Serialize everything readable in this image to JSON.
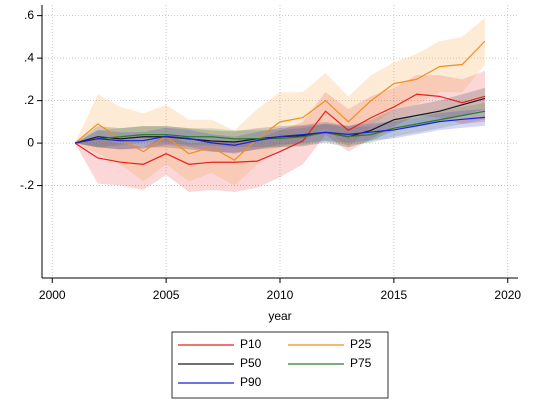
{
  "chart_data": {
    "type": "line",
    "x_label": "year",
    "x": [
      2001,
      2002,
      2003,
      2004,
      2005,
      2006,
      2007,
      2008,
      2009,
      2010,
      2011,
      2012,
      2013,
      2014,
      2015,
      2016,
      2017,
      2018,
      2019
    ],
    "xlim": [
      1999.55,
      2020.45
    ],
    "xticks": [
      2000,
      2005,
      2010,
      2015,
      2020
    ],
    "ylim": [
      -0.635,
      0.65
    ],
    "yticks": [
      {
        "value": 0.6,
        "label": ".6"
      },
      {
        "value": 0.4,
        "label": ".4"
      },
      {
        "value": 0.2,
        "label": ".2"
      },
      0,
      {
        "value": -0.2,
        "label": "-.2"
      }
    ],
    "grid": true,
    "legend": "bottom",
    "series": [
      {
        "name": "P10",
        "color": "#e8211f",
        "values": [
          0,
          -0.07,
          -0.09,
          -0.1,
          -0.05,
          -0.1,
          -0.09,
          -0.09,
          -0.085,
          -0.04,
          0.01,
          0.15,
          0.06,
          0.12,
          0.17,
          0.23,
          0.22,
          0.19,
          0.22
        ],
        "upper": [
          0,
          0.02,
          0.0,
          -0.02,
          0.04,
          0.0,
          0.005,
          0.01,
          0.02,
          0.06,
          0.1,
          0.24,
          0.16,
          0.22,
          0.26,
          0.32,
          0.32,
          0.3,
          0.34
        ],
        "lower": [
          0,
          -0.19,
          -0.2,
          -0.22,
          -0.15,
          -0.23,
          -0.22,
          -0.23,
          -0.21,
          -0.16,
          -0.1,
          0.04,
          -0.04,
          0.02,
          0.08,
          0.13,
          0.12,
          0.09,
          0.1
        ]
      },
      {
        "name": "P25",
        "color": "#f28e1c",
        "values": [
          0,
          0.09,
          0.02,
          -0.04,
          0.03,
          -0.05,
          -0.02,
          -0.08,
          0.02,
          0.1,
          0.12,
          0.2,
          0.1,
          0.2,
          0.28,
          0.3,
          0.36,
          0.37,
          0.48
        ],
        "upper": [
          0,
          0.23,
          0.17,
          0.14,
          0.18,
          0.11,
          0.11,
          0.06,
          0.16,
          0.24,
          0.24,
          0.33,
          0.22,
          0.32,
          0.38,
          0.42,
          0.48,
          0.5,
          0.59
        ],
        "lower": [
          0,
          -0.05,
          -0.1,
          -0.18,
          -0.1,
          -0.18,
          -0.14,
          -0.2,
          -0.1,
          -0.02,
          0.005,
          0.07,
          -0.02,
          0.08,
          0.16,
          0.18,
          0.24,
          0.24,
          0.37
        ]
      },
      {
        "name": "P50",
        "color": "#1a1a1a",
        "values": [
          0,
          0.03,
          0.02,
          0.03,
          0.03,
          0.02,
          0.01,
          0.005,
          0.02,
          0.03,
          0.035,
          0.05,
          0.03,
          0.06,
          0.11,
          0.13,
          0.15,
          0.18,
          0.21
        ],
        "upper": [
          0,
          0.08,
          0.07,
          0.08,
          0.08,
          0.07,
          0.06,
          0.055,
          0.07,
          0.08,
          0.085,
          0.1,
          0.08,
          0.11,
          0.16,
          0.18,
          0.2,
          0.23,
          0.26
        ],
        "lower": [
          0,
          -0.02,
          -0.03,
          -0.02,
          -0.02,
          -0.03,
          -0.04,
          -0.045,
          -0.03,
          -0.02,
          -0.015,
          0.002,
          -0.02,
          0.01,
          0.06,
          0.08,
          0.1,
          0.13,
          0.16
        ]
      },
      {
        "name": "P75",
        "color": "#2a7d2a",
        "values": [
          0,
          0.02,
          0.03,
          0.04,
          0.04,
          0.03,
          0.03,
          0.02,
          0.021,
          0.022,
          0.03,
          0.05,
          0.031,
          0.04,
          0.07,
          0.09,
          0.11,
          0.13,
          0.15
        ],
        "upper": [
          0,
          0.06,
          0.07,
          0.08,
          0.08,
          0.07,
          0.07,
          0.06,
          0.061,
          0.062,
          0.07,
          0.09,
          0.071,
          0.08,
          0.11,
          0.13,
          0.15,
          0.17,
          0.19
        ],
        "lower": [
          0,
          -0.02,
          -0.01,
          0.003,
          0.004,
          -0.01,
          -0.01,
          -0.02,
          -0.019,
          -0.018,
          -0.01,
          0.01,
          -0.009,
          0.001,
          0.03,
          0.05,
          0.07,
          0.09,
          0.11
        ]
      },
      {
        "name": "P90",
        "color": "#1f1fd6",
        "values": [
          0,
          0.021,
          0.011,
          0.012,
          0.032,
          0.022,
          0.001,
          -0.01,
          0.012,
          0.031,
          0.04,
          0.051,
          0.041,
          0.052,
          0.062,
          0.081,
          0.101,
          0.112,
          0.121
        ],
        "upper": [
          0,
          0.061,
          0.051,
          0.052,
          0.072,
          0.062,
          0.041,
          0.03,
          0.052,
          0.071,
          0.08,
          0.091,
          0.081,
          0.092,
          0.102,
          0.121,
          0.141,
          0.152,
          0.161
        ],
        "lower": [
          0,
          -0.019,
          -0.029,
          -0.028,
          -0.008,
          -0.018,
          -0.039,
          -0.05,
          -0.028,
          -0.009,
          0.0005,
          0.011,
          0.0015,
          0.012,
          0.022,
          0.041,
          0.061,
          0.072,
          0.081
        ]
      }
    ]
  }
}
